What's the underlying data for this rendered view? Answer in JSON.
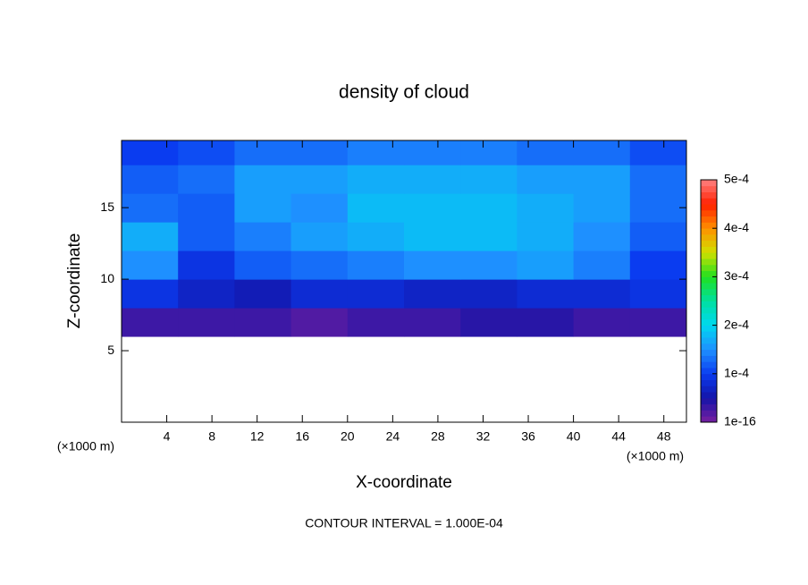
{
  "chart_data": {
    "type": "heatmap",
    "title": "density of cloud",
    "xlabel": "X-coordinate",
    "ylabel": "Z-coordinate",
    "xunit": "(×1000 m)",
    "yunit": "(×1000 m)",
    "annotation": "CONTOUR INTERVAL = 1.000E-04",
    "xlim": [
      0,
      50
    ],
    "ylim": [
      0,
      19.7
    ],
    "xticks": [
      4,
      8,
      12,
      16,
      20,
      24,
      28,
      32,
      36,
      40,
      44,
      48
    ],
    "yticks": [
      5,
      10,
      15
    ],
    "x": [
      2.5,
      7.5,
      12.5,
      17.5,
      22.5,
      27.5,
      32.5,
      37.5,
      42.5,
      47.5
    ],
    "y": [
      1,
      3,
      5,
      7,
      9,
      11,
      13,
      15,
      17,
      19
    ],
    "z": [
      [
        null,
        null,
        null,
        null,
        null,
        null,
        null,
        null,
        null,
        null
      ],
      [
        null,
        null,
        null,
        null,
        null,
        null,
        null,
        null,
        null,
        null
      ],
      [
        null,
        null,
        null,
        null,
        null,
        null,
        null,
        null,
        null,
        null
      ],
      [
        3e-05,
        3e-05,
        3e-05,
        2e-05,
        3e-05,
        3e-05,
        4e-05,
        4e-05,
        3e-05,
        3e-05
      ],
      [
        9e-05,
        7e-05,
        6e-05,
        8e-05,
        8e-05,
        7e-05,
        7e-05,
        8e-05,
        8e-05,
        9e-05
      ],
      [
        0.00015,
        9e-05,
        0.00012,
        0.00013,
        0.00014,
        0.00015,
        0.00015,
        0.00016,
        0.00014,
        0.0001
      ],
      [
        0.00017,
        0.00012,
        0.00014,
        0.00016,
        0.00017,
        0.00018,
        0.00018,
        0.00017,
        0.00015,
        0.00012
      ],
      [
        0.00013,
        0.00012,
        0.00016,
        0.00015,
        0.00018,
        0.00018,
        0.00018,
        0.00017,
        0.00016,
        0.00013
      ],
      [
        0.00012,
        0.00013,
        0.00016,
        0.00016,
        0.00017,
        0.00017,
        0.00017,
        0.00016,
        0.00016,
        0.00013
      ],
      [
        0.0001,
        0.00011,
        0.00013,
        0.00013,
        0.00014,
        0.00014,
        0.00014,
        0.00013,
        0.00013,
        0.00011
      ]
    ],
    "colorbar": {
      "lim": [
        1e-16,
        0.0005
      ],
      "ticks": [
        {
          "value": 1e-16,
          "label": "1e-16"
        },
        {
          "value": 0.0001,
          "label": "1e-4"
        },
        {
          "value": 0.0002,
          "label": "2e-4"
        },
        {
          "value": 0.0003,
          "label": "3e-4"
        },
        {
          "value": 0.0004,
          "label": "4e-4"
        },
        {
          "value": 0.0005,
          "label": "5e-4"
        }
      ],
      "colors": [
        "#7a1fa0",
        "#1414a8",
        "#0a3cf0",
        "#1e90ff",
        "#00d8f0",
        "#00e0a0",
        "#20e020",
        "#d0e000",
        "#ff9000",
        "#ff2000",
        "#ff8080"
      ]
    }
  }
}
